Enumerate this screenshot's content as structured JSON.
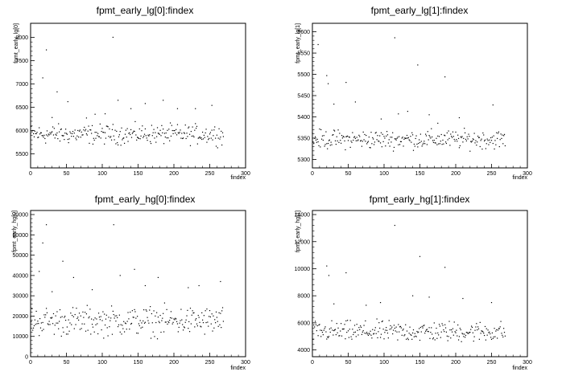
{
  "chart_data": [
    {
      "type": "scatter",
      "title": "fpmt_early_lg[0]:findex",
      "xlabel": "findex",
      "ylabel": "fpmt_early_lg[0]",
      "xlim": [
        0,
        300
      ],
      "ylim": [
        5200,
        8300
      ],
      "xticks": [
        0,
        50,
        100,
        150,
        200,
        250,
        300
      ],
      "yticks": [
        5500,
        6000,
        6500,
        7000,
        7500,
        8000
      ],
      "outliers": [
        [
          17,
          7130
        ],
        [
          22,
          7730
        ],
        [
          30,
          6280
        ],
        [
          37,
          6830
        ],
        [
          52,
          6620
        ],
        [
          78,
          6270
        ],
        [
          90,
          6350
        ],
        [
          104,
          6360
        ],
        [
          115,
          8000
        ],
        [
          122,
          6650
        ],
        [
          140,
          6470
        ],
        [
          160,
          6580
        ],
        [
          185,
          6650
        ],
        [
          205,
          6470
        ],
        [
          230,
          6470
        ],
        [
          253,
          6540
        ]
      ],
      "band": {
        "n": 270,
        "center": 5920,
        "spread": 190
      },
      "grid": false
    },
    {
      "type": "scatter",
      "title": "fpmt_early_lg[1]:findex",
      "xlabel": "findex",
      "ylabel": "fpmt_early_lg[1]",
      "xlim": [
        0,
        300
      ],
      "ylim": [
        5280,
        5620
      ],
      "xticks": [
        0,
        50,
        100,
        150,
        200,
        250,
        300
      ],
      "yticks": [
        5300,
        5350,
        5400,
        5450,
        5500,
        5550,
        5600
      ],
      "outliers": [
        [
          8,
          5570
        ],
        [
          20,
          5497
        ],
        [
          22,
          5478
        ],
        [
          47,
          5481
        ],
        [
          30,
          5430
        ],
        [
          60,
          5435
        ],
        [
          115,
          5586
        ],
        [
          147,
          5522
        ],
        [
          185,
          5494
        ],
        [
          120,
          5407
        ],
        [
          133,
          5413
        ],
        [
          163,
          5405
        ],
        [
          205,
          5398
        ],
        [
          252,
          5428
        ],
        [
          96,
          5395
        ],
        [
          175,
          5385
        ]
      ],
      "band": {
        "n": 270,
        "center": 5347,
        "spread": 20
      },
      "grid": false
    },
    {
      "type": "scatter",
      "title": "fpmt_early_hg[0]:findex",
      "xlabel": "findex",
      "ylabel": "fpmt_early_hg[0]",
      "xlim": [
        0,
        300
      ],
      "ylim": [
        0,
        72000
      ],
      "xticks": [
        0,
        50,
        100,
        150,
        200,
        250,
        300
      ],
      "yticks": [
        0,
        10000,
        20000,
        30000,
        40000,
        50000,
        60000,
        70000
      ],
      "outliers": [
        [
          17,
          56000
        ],
        [
          22,
          65000
        ],
        [
          30,
          32000
        ],
        [
          45,
          47000
        ],
        [
          60,
          39000
        ],
        [
          86,
          33000
        ],
        [
          116,
          65000
        ],
        [
          125,
          40000
        ],
        [
          145,
          43000
        ],
        [
          160,
          35000
        ],
        [
          178,
          39000
        ],
        [
          220,
          34000
        ],
        [
          235,
          35000
        ],
        [
          265,
          37000
        ],
        [
          12,
          42000
        ]
      ],
      "band": {
        "n": 270,
        "center": 17500,
        "spread": 6500
      },
      "grid": false
    },
    {
      "type": "scatter",
      "title": "fpmt_early_hg[1]:findex",
      "xlabel": "findex",
      "ylabel": "fpmt_early_hg[1]",
      "xlim": [
        0,
        300
      ],
      "ylim": [
        3500,
        14300
      ],
      "xticks": [
        0,
        50,
        100,
        150,
        200,
        250,
        300
      ],
      "yticks": [
        4000,
        6000,
        8000,
        10000,
        12000,
        14000
      ],
      "outliers": [
        [
          20,
          10200
        ],
        [
          23,
          9500
        ],
        [
          47,
          9700
        ],
        [
          115,
          13200
        ],
        [
          150,
          10900
        ],
        [
          185,
          10100
        ],
        [
          140,
          8000
        ],
        [
          163,
          7900
        ],
        [
          210,
          7800
        ],
        [
          250,
          7500
        ],
        [
          30,
          7400
        ],
        [
          95,
          7500
        ],
        [
          75,
          7300
        ]
      ],
      "band": {
        "n": 270,
        "center": 5350,
        "spread": 700
      },
      "grid": false
    }
  ]
}
